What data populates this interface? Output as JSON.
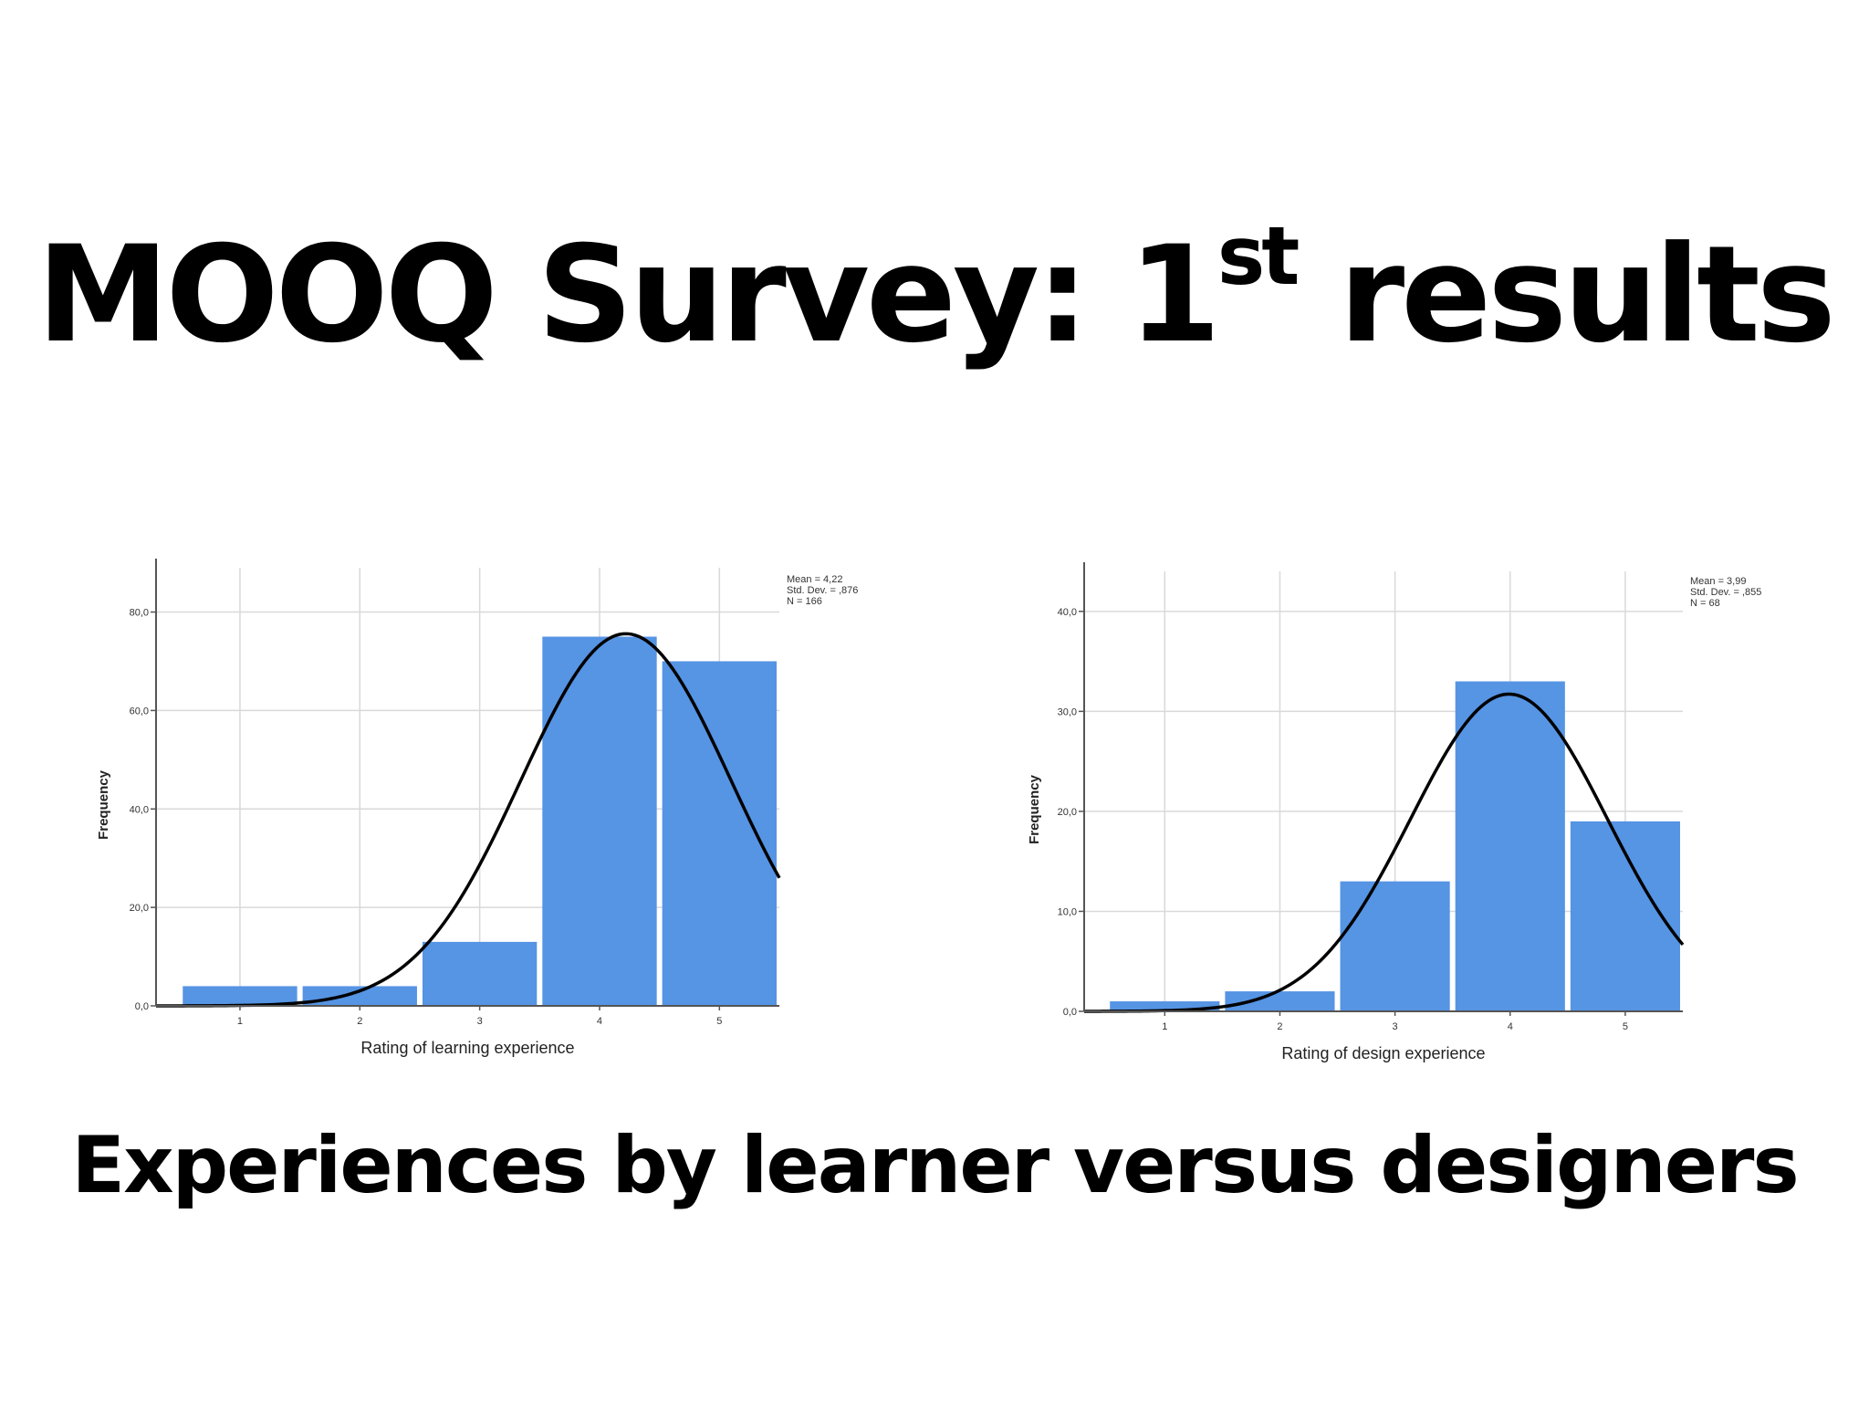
{
  "slide": {
    "title_main": "MOOQ Survey: 1",
    "title_sup": "st",
    "title_end": " results",
    "subtitle": "Experiences by learner versus designers"
  },
  "colors": {
    "bar": "#5694e4",
    "curve": "#000000",
    "grid": "#d9d9d9",
    "axis": "#555555"
  },
  "chart_data": [
    {
      "type": "bar",
      "categories": [
        "1",
        "2",
        "3",
        "4",
        "5"
      ],
      "values": [
        4,
        4,
        13,
        75,
        70
      ],
      "title": "",
      "xlabel": "Rating of learning experience",
      "ylabel": "Frequency",
      "ylim": [
        0,
        89
      ],
      "yticks": [
        0,
        20,
        40,
        60,
        80
      ],
      "ytick_labels": [
        "0,0",
        "20,0",
        "40,0",
        "60,0",
        "80,0"
      ],
      "grid": true,
      "normal_curve": {
        "mean": 4.22,
        "sd": 0.876,
        "n": 166
      },
      "stats_box": [
        "Mean = 4,22",
        "Std. Dev. = ,876",
        "N = 166"
      ],
      "stats_position": "top-right"
    },
    {
      "type": "bar",
      "categories": [
        "1",
        "2",
        "3",
        "4",
        "5"
      ],
      "values": [
        1,
        2,
        13,
        33,
        19
      ],
      "title": "",
      "xlabel": "Rating of design experience",
      "ylabel": "Frequency",
      "ylim": [
        0,
        44
      ],
      "yticks": [
        0,
        10,
        20,
        30,
        40
      ],
      "ytick_labels": [
        "0,0",
        "10,0",
        "20,0",
        "30,0",
        "40,0"
      ],
      "grid": true,
      "normal_curve": {
        "mean": 3.99,
        "sd": 0.855,
        "n": 68
      },
      "stats_box": [
        "Mean = 3,99",
        "Std. Dev. = ,855",
        "N = 68"
      ],
      "stats_position": "top-right"
    }
  ]
}
